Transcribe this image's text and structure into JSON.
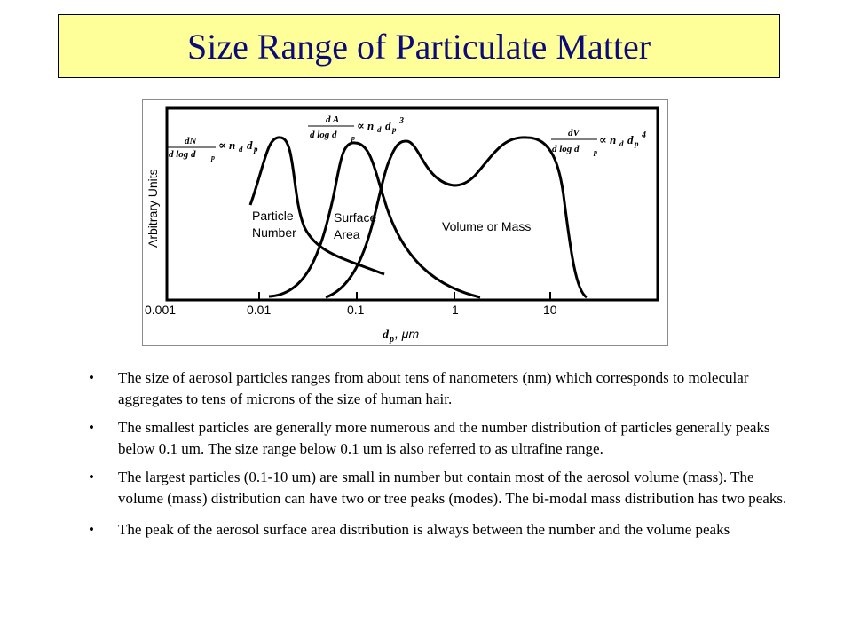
{
  "slide": {
    "title": "Size Range of Particulate Matter"
  },
  "figure": {
    "ylabel": "Arbitrary Units",
    "xlabel_symbol": "d",
    "xlabel_sub": "p",
    "xlabel_unit": ",  μm",
    "tick_labels": [
      "0.001",
      "0.01",
      "0.1",
      "1",
      "10"
    ],
    "curves": [
      {
        "label_line1": "Particle",
        "label_line2": "Number",
        "formula_num": "dN",
        "formula_den": "d log d",
        "formula_rhs": "∝ n",
        "power": ""
      },
      {
        "label_line1": "Surface",
        "label_line2": "Area",
        "formula_num": "d A",
        "formula_den": "d log d",
        "formula_rhs": "∝ n",
        "power": "3"
      },
      {
        "label_line1": "Volume or Mass",
        "label_line2": "",
        "formula_num": "dV",
        "formula_den": "d log d",
        "formula_rhs": "∝ n",
        "power": "4"
      }
    ],
    "formula_sub_p": "p",
    "formula_sub_d": "d",
    "formula_dp": "d"
  },
  "bullets": [
    "The size of aerosol particles ranges from about tens of nanometers (nm) which corresponds to molecular aggregates to tens of microns of the size of human hair.",
    "The smallest particles are generally more numerous and the number distribution of particles generally peaks below 0.1 um. The size range below 0.1 um is also referred to as ultrafine range.",
    "The largest particles (0.1-10 um) are small in number but contain most of the aerosol volume (mass). The volume (mass) distribution can have two or tree peaks (modes). The bi-modal mass distribution has two peaks.",
    "The peak of the aerosol surface area distribution is always between the number and the volume peaks"
  ],
  "bullet_char": "•"
}
